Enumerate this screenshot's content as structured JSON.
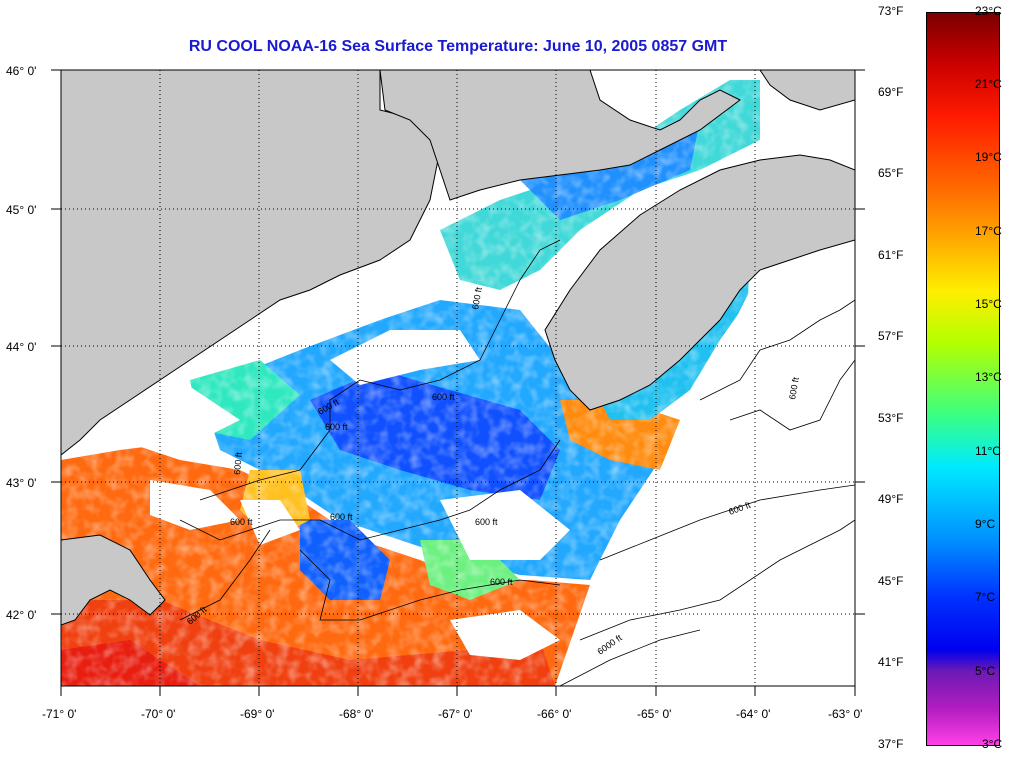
{
  "title": "RU COOL  NOAA-16  Sea Surface Temperature:  June 10, 2005 0857 GMT",
  "map": {
    "lon_labels": [
      "-71° 0'",
      "-70° 0'",
      "-69° 0'",
      "-68° 0'",
      "-67° 0'",
      "-66° 0'",
      "-65° 0'",
      "-64° 0'",
      "-63° 0'"
    ],
    "lat_labels": [
      "46° 0'",
      "45° 0'",
      "44° 0'",
      "43° 0'",
      "42° 0'"
    ],
    "contour_labels": [
      "600 ft",
      "600 ft",
      "600 ft",
      "600 ft",
      "600 ft",
      "600 ft",
      "600 ft",
      "600 ft",
      "600 ft",
      "600 ft",
      "600 ft",
      "6000 ft",
      "600 ft"
    ],
    "colors": {
      "land": "#c8c8c8",
      "cloud": "#ffffff",
      "grid": "#000000"
    }
  },
  "colorbar": {
    "fahrenheit_labels": [
      "73°F",
      "69°F",
      "65°F",
      "61°F",
      "57°F",
      "53°F",
      "49°F",
      "45°F",
      "41°F",
      "37°F"
    ],
    "celsius_labels": [
      "23°C",
      "21°C",
      "19°C",
      "17°C",
      "15°C",
      "13°C",
      "11°C",
      "9°C",
      "7°C",
      "5°C",
      "3°C"
    ]
  }
}
